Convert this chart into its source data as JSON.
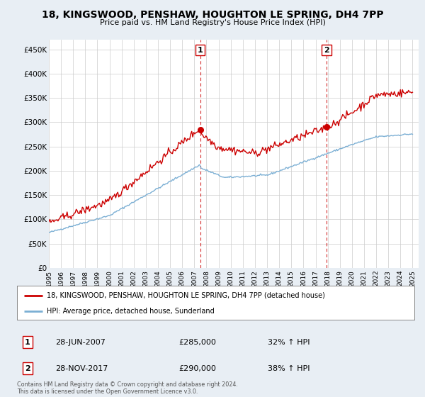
{
  "title": "18, KINGSWOOD, PENSHAW, HOUGHTON LE SPRING, DH4 7PP",
  "subtitle": "Price paid vs. HM Land Registry's House Price Index (HPI)",
  "ylim": [
    0,
    470000
  ],
  "yticks": [
    0,
    50000,
    100000,
    150000,
    200000,
    250000,
    300000,
    350000,
    400000,
    450000
  ],
  "ytick_labels": [
    "£0",
    "£50K",
    "£100K",
    "£150K",
    "£200K",
    "£250K",
    "£300K",
    "£350K",
    "£400K",
    "£450K"
  ],
  "sale1_date_num": 2007.49,
  "sale1_price": 285000,
  "sale1_label": "1",
  "sale1_date_str": "28-JUN-2007",
  "sale1_hpi_pct": "32% ↑ HPI",
  "sale2_date_num": 2017.91,
  "sale2_price": 290000,
  "sale2_label": "2",
  "sale2_date_str": "28-NOV-2017",
  "sale2_hpi_pct": "38% ↑ HPI",
  "hpi_line_color": "#7bafd4",
  "price_line_color": "#cc0000",
  "vline_color": "#cc0000",
  "background_color": "#e8eef4",
  "plot_bg_color": "#ffffff",
  "legend_label_price": "18, KINGSWOOD, PENSHAW, HOUGHTON LE SPRING, DH4 7PP (detached house)",
  "legend_label_hpi": "HPI: Average price, detached house, Sunderland",
  "footer": "Contains HM Land Registry data © Crown copyright and database right 2024.\nThis data is licensed under the Open Government Licence v3.0."
}
